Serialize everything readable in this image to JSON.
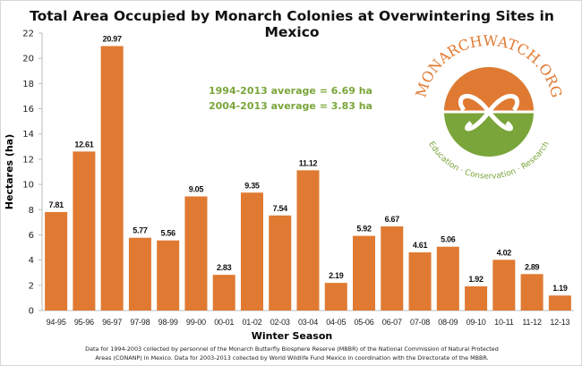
{
  "chart_data": {
    "type": "bar",
    "title": "Total Area Occupied by Monarch Colonies at Overwintering Sites in Mexico",
    "xlabel": "Winter Season",
    "ylabel": "Hectares (ha)",
    "ylim": [
      0,
      22
    ],
    "yticks": [
      0,
      2,
      4,
      6,
      8,
      10,
      12,
      14,
      16,
      18,
      20,
      22
    ],
    "grid": false,
    "categories": [
      "94-95",
      "95-96",
      "96-97",
      "97-98",
      "98-99",
      "99-00",
      "00-01",
      "01-02",
      "02-03",
      "03-04",
      "04-05",
      "05-06",
      "06-07",
      "07-08",
      "08-09",
      "09-10",
      "10-11",
      "11-12",
      "12-13"
    ],
    "values": [
      7.81,
      12.61,
      20.97,
      5.77,
      5.56,
      9.05,
      2.83,
      9.35,
      7.54,
      11.12,
      2.19,
      5.92,
      6.67,
      4.61,
      5.06,
      1.92,
      4.02,
      2.89,
      1.19
    ],
    "bar_color": "#e07a32",
    "annotations": [
      "1994-2013 average = 6.69 ha",
      "2004-2013 average = 3.83 ha"
    ],
    "annotation_color": "#7aa53a",
    "footnote": [
      "Data for 1994-2003 collected by personnel of the Monarch Butterfly Biosphere Reserve (MBBR) of the National Commission of Natural Protected",
      "Areas (CONANP) in Mexico. Data for 2003-2013 collected by World Wildlife Fund Mexico in coordination with the Directorate of the MBBR."
    ]
  },
  "logo": {
    "top_text": "MONARCHWATCH.ORG",
    "bottom_text": "Education · Conservation · Research"
  }
}
